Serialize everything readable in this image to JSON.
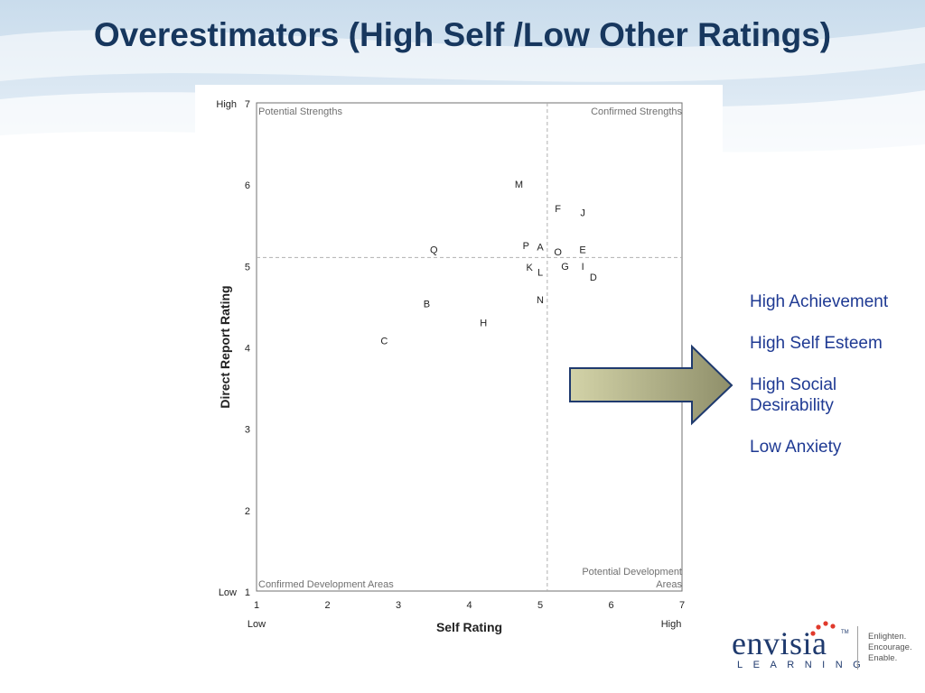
{
  "title": "Overestimators (High Self /Low Other Ratings)",
  "chart_data": {
    "type": "scatter",
    "xlabel": "Self Rating",
    "ylabel": "Direct Report Rating",
    "xlim": [
      1,
      7
    ],
    "ylim": [
      1,
      7
    ],
    "x_ticks": [
      "1",
      "2",
      "3",
      "4",
      "5",
      "6",
      "7"
    ],
    "y_ticks": [
      "1",
      "2",
      "3",
      "4",
      "5",
      "6",
      "7"
    ],
    "x_low_label": "Low",
    "x_high_label": "High",
    "y_low_label": "Low",
    "y_high_label": "High",
    "divider_x": 5.1,
    "divider_y": 5.1,
    "quadrants": {
      "top_left": "Potential Strengths",
      "top_right": "Confirmed Strengths",
      "bottom_left": "Confirmed Development Areas",
      "bottom_right": [
        "Potential Development",
        "Areas"
      ]
    },
    "points": [
      {
        "label": "M",
        "x": 4.7,
        "y": 6.0
      },
      {
        "label": "F",
        "x": 5.25,
        "y": 5.7
      },
      {
        "label": "J",
        "x": 5.6,
        "y": 5.65
      },
      {
        "label": "Q",
        "x": 3.5,
        "y": 5.2
      },
      {
        "label": "P",
        "x": 4.8,
        "y": 5.25
      },
      {
        "label": "A",
        "x": 5.0,
        "y": 5.23
      },
      {
        "label": "O",
        "x": 5.25,
        "y": 5.17
      },
      {
        "label": "E",
        "x": 5.6,
        "y": 5.2
      },
      {
        "label": "K",
        "x": 4.85,
        "y": 4.98
      },
      {
        "label": "G",
        "x": 5.35,
        "y": 4.99
      },
      {
        "label": "I",
        "x": 5.6,
        "y": 4.99
      },
      {
        "label": "L",
        "x": 5.0,
        "y": 4.92
      },
      {
        "label": "D",
        "x": 5.75,
        "y": 4.86
      },
      {
        "label": "N",
        "x": 5.0,
        "y": 4.58
      },
      {
        "label": "B",
        "x": 3.4,
        "y": 4.53
      },
      {
        "label": "H",
        "x": 4.2,
        "y": 4.3
      },
      {
        "label": "C",
        "x": 2.8,
        "y": 4.08
      }
    ]
  },
  "side_list": [
    "High Achievement",
    "High Self Esteem",
    "High Social Desirability",
    "Low Anxiety"
  ],
  "logo": {
    "word": "envisia",
    "sub": "LEARNING",
    "tm": "TM",
    "tagline": [
      "Enlighten.",
      "Encourage.",
      "Enable."
    ]
  },
  "colors": {
    "title": "#17375e",
    "side_text": "#1f3a93",
    "arrow_fill_start": "#d3d3a8",
    "arrow_fill_end": "#8f8f6a",
    "logo_dots": "#e03a2c"
  }
}
